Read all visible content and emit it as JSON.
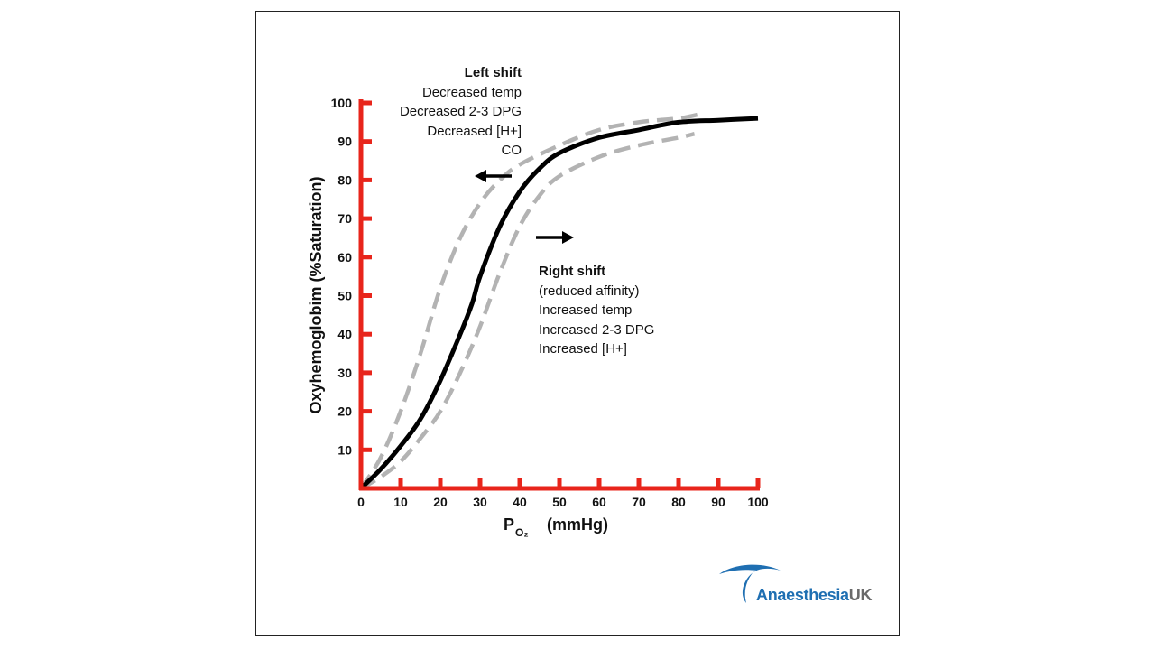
{
  "chart_data": {
    "type": "line",
    "xlabel": "P",
    "xlabel_sub": "O₂",
    "xlabel_unit": "(mmHg)",
    "ylabel": "Oxyhemoglobim  (%Saturation)",
    "xlim": [
      0,
      100
    ],
    "ylim": [
      0,
      100
    ],
    "x_ticks": [
      0,
      10,
      20,
      30,
      40,
      50,
      60,
      70,
      80,
      90,
      100
    ],
    "y_ticks": [
      10,
      20,
      30,
      40,
      50,
      60,
      70,
      80,
      90,
      100
    ],
    "grid": false,
    "axis_color": "#e8251b",
    "series": [
      {
        "style": "solid",
        "color": "#000000",
        "x": [
          0,
          5,
          10,
          15,
          20,
          25,
          28,
          30,
          35,
          40,
          45,
          50,
          60,
          70,
          80,
          90,
          100
        ],
        "y": [
          0,
          5,
          11,
          18,
          28,
          40,
          48,
          55,
          68,
          77,
          83,
          87,
          91,
          93,
          95,
          95.5,
          96
        ]
      },
      {
        "style": "dashed",
        "color": "#b3b3b3",
        "x": [
          0,
          5,
          10,
          15,
          20,
          25,
          30,
          35,
          40,
          50,
          60,
          70,
          80,
          85
        ],
        "y": [
          0,
          8,
          20,
          35,
          52,
          65,
          74,
          80,
          84,
          89,
          93,
          95,
          96,
          97
        ]
      },
      {
        "style": "dashed",
        "color": "#b3b3b3",
        "x": [
          0,
          5,
          10,
          15,
          20,
          25,
          30,
          35,
          40,
          45,
          50,
          60,
          70,
          80,
          84
        ],
        "y": [
          0,
          3,
          7,
          13,
          20,
          30,
          42,
          56,
          68,
          76,
          81,
          86,
          89,
          91,
          92
        ]
      }
    ],
    "annotations": {
      "left": {
        "title": "Left shift",
        "lines": [
          "Decreased temp",
          "Decreased 2-3 DPG",
          "Decreased [H+]",
          "CO"
        ]
      },
      "right": {
        "title": "Right shift",
        "lines": [
          "(reduced affinity)",
          "Increased temp",
          "Increased 2-3 DPG",
          "Increased [H+]"
        ]
      }
    }
  },
  "logo": {
    "brand_a": "Anaesthesia",
    "brand_b": "UK",
    "primary_color": "#1f6fb2",
    "secondary_color": "#6a6a6a"
  }
}
